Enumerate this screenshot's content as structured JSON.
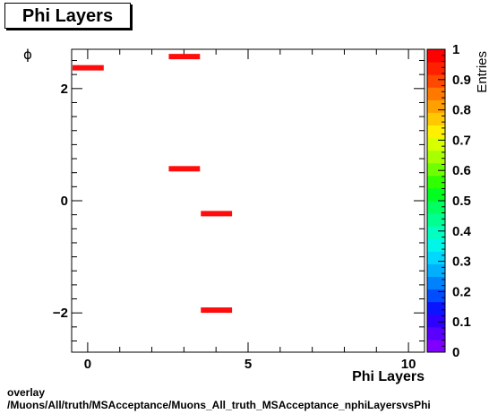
{
  "title": "Phi Layers",
  "footer": {
    "line1": "overlay",
    "line2": "/Muons/All/truth/MSAcceptance/Muons_All_truth_MSAcceptance_nphiLayersvsPhi"
  },
  "chart_data": {
    "type": "heatmap",
    "title": "Phi Layers",
    "xlabel": "Phi Layers",
    "ylabel": "ϕ",
    "zlabel": "Entries",
    "xlim": [
      -0.5,
      10.5
    ],
    "ylim": [
      -2.7,
      2.7
    ],
    "zlim": [
      0,
      1
    ],
    "x_ticks": [
      0,
      5,
      10
    ],
    "y_ticks": [
      -2,
      0,
      2
    ],
    "z_ticks": [
      0,
      0.1,
      0.2,
      0.3,
      0.4,
      0.5,
      0.6,
      0.7,
      0.8,
      0.9,
      1
    ],
    "bin_color": "#ff0d0d",
    "bins": [
      {
        "x": [
          -0.5,
          0.5
        ],
        "y": 2.37,
        "value": 1
      },
      {
        "x": [
          2.5,
          3.5
        ],
        "y": 2.57,
        "value": 1
      },
      {
        "x": [
          2.5,
          3.5
        ],
        "y": 0.57,
        "value": 1
      },
      {
        "x": [
          3.5,
          4.5
        ],
        "y": -0.23,
        "value": 1
      },
      {
        "x": [
          3.5,
          4.5
        ],
        "y": -1.95,
        "value": 1
      }
    ],
    "palette": [
      "#8000ff",
      "#5a00ff",
      "#2e00ff",
      "#0a14ff",
      "#004cff",
      "#0082ff",
      "#00b0ff",
      "#00d8ff",
      "#00f6e8",
      "#00ffc0",
      "#00ff90",
      "#00ff60",
      "#00ff20",
      "#30ff00",
      "#70ff00",
      "#a8ff00",
      "#d8ff00",
      "#fff000",
      "#ffc800",
      "#ffa000",
      "#ff7800",
      "#ff4800",
      "#ff2000",
      "#ff0000"
    ]
  }
}
